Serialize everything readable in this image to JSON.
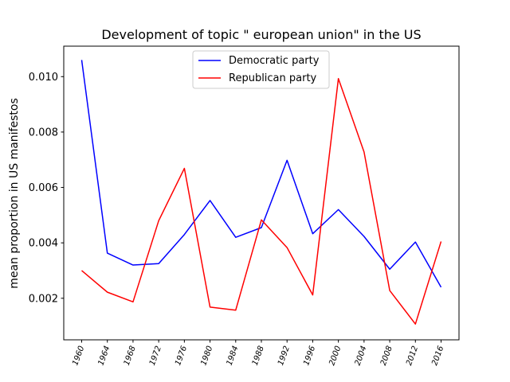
{
  "chart_data": {
    "type": "line",
    "title": "Development of topic \" european union\" in the US",
    "xlabel": "",
    "ylabel": "mean proportion in US manifestos",
    "x": [
      "1960",
      "1964",
      "1968",
      "1972",
      "1976",
      "1980",
      "1984",
      "1988",
      "1992",
      "1996",
      "2000",
      "2004",
      "2008",
      "2012",
      "2016"
    ],
    "ylim": [
      0.0005,
      0.0111
    ],
    "yticks": [
      "0.002",
      "0.004",
      "0.006",
      "0.008",
      "0.010"
    ],
    "ytick_values": [
      0.002,
      0.004,
      0.006,
      0.008,
      0.01
    ],
    "legend_position": "top-center",
    "grid": false,
    "series": [
      {
        "name": "Democratic party",
        "color": "#0000ff",
        "values": [
          0.0106,
          0.00363,
          0.0032,
          0.00325,
          0.0043,
          0.00553,
          0.0042,
          0.00455,
          0.00698,
          0.00433,
          0.0052,
          0.00423,
          0.00305,
          0.00403,
          0.0024
        ]
      },
      {
        "name": "Republican party",
        "color": "#ff0000",
        "values": [
          0.003,
          0.00222,
          0.00187,
          0.0048,
          0.00669,
          0.00168,
          0.00157,
          0.00483,
          0.00383,
          0.00212,
          0.00993,
          0.00728,
          0.00228,
          0.00107,
          0.00405
        ]
      }
    ]
  }
}
